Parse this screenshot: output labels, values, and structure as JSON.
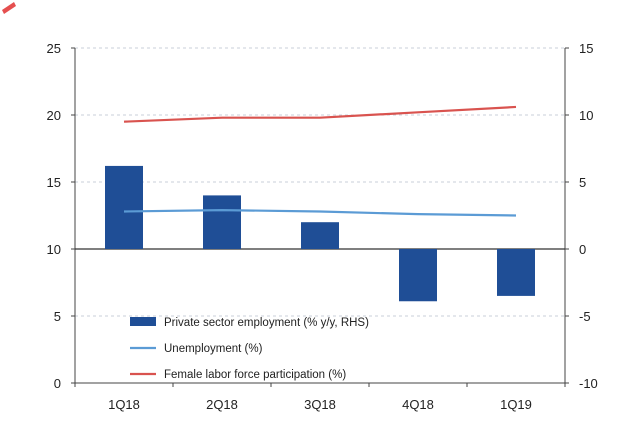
{
  "chart_data": {
    "type": "bar+line",
    "categories": [
      "1Q18",
      "2Q18",
      "3Q18",
      "4Q18",
      "1Q19"
    ],
    "left_axis": {
      "min": 0,
      "max": 25,
      "ticks": [
        "0",
        "5",
        "10",
        "15",
        "20",
        "25"
      ]
    },
    "right_axis": {
      "min": -10,
      "max": 15,
      "ticks": [
        "-10",
        "-5",
        "0",
        "5",
        "10",
        "15"
      ]
    },
    "grid": true,
    "legend_position": "bottom-left inside",
    "series": [
      {
        "name": "Private sector employment (% y/y, RHS)",
        "type": "bar",
        "axis": "right",
        "color": "#1f4e96",
        "values": [
          6.2,
          4.0,
          2.0,
          -3.9,
          -3.5
        ]
      },
      {
        "name": "Unemployment (%)",
        "type": "line",
        "axis": "left",
        "color": "#5b9bd5",
        "values": [
          12.8,
          12.9,
          12.8,
          12.6,
          12.5
        ]
      },
      {
        "name": "Female labor force participation (%)",
        "type": "line",
        "axis": "left",
        "color": "#d9534f",
        "values": [
          19.5,
          19.8,
          19.8,
          20.2,
          20.6
        ]
      }
    ]
  }
}
